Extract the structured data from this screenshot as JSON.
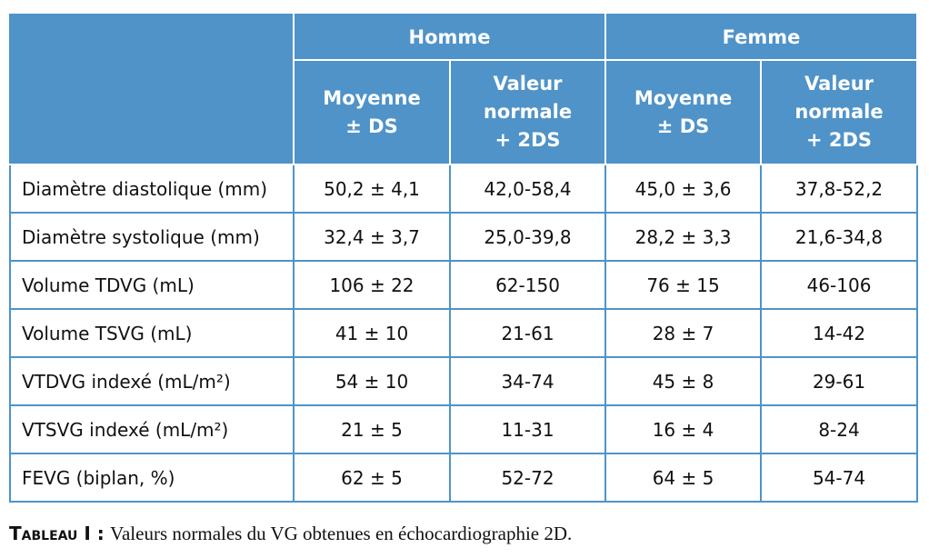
{
  "table": {
    "group_headers": [
      "Homme",
      "Femme"
    ],
    "sub_headers": [
      "Moyenne\n± DS",
      "Valeur\nnormale\n+ 2DS",
      "Moyenne\n± DS",
      "Valeur\nnormale\n+ 2DS"
    ],
    "rows": [
      [
        "Diamètre diastolique (mm)",
        "50,2 ± 4,1",
        "42,0-58,4",
        "45,0 ± 3,6",
        "37,8-52,2"
      ],
      [
        "Diamètre systolique (mm)",
        "32,4 ± 3,7",
        "25,0-39,8",
        "28,2 ± 3,3",
        "21,6-34,8"
      ],
      [
        "Volume TDVG (mL)",
        "106 ± 22",
        "62-150",
        "76 ± 15",
        "46-106"
      ],
      [
        "Volume TSVG (mL)",
        "41 ± 10",
        "21-61",
        "28 ± 7",
        "14-42"
      ],
      [
        "VTDVG indexé (mL/m²)",
        "54 ± 10",
        "34-74",
        "45 ± 8",
        "29-61"
      ],
      [
        "VTSVG indexé (mL/m²)",
        "21 ± 5",
        "11-31",
        "16 ± 4",
        "8-24"
      ],
      [
        "FEVG (biplan, %)",
        "62 ± 5",
        "52-72",
        "64 ± 5",
        "54-74"
      ]
    ]
  },
  "caption": {
    "label": "Tableau I :",
    "text": "Valeurs normales du VG obtenues en échocardiographie 2D."
  }
}
